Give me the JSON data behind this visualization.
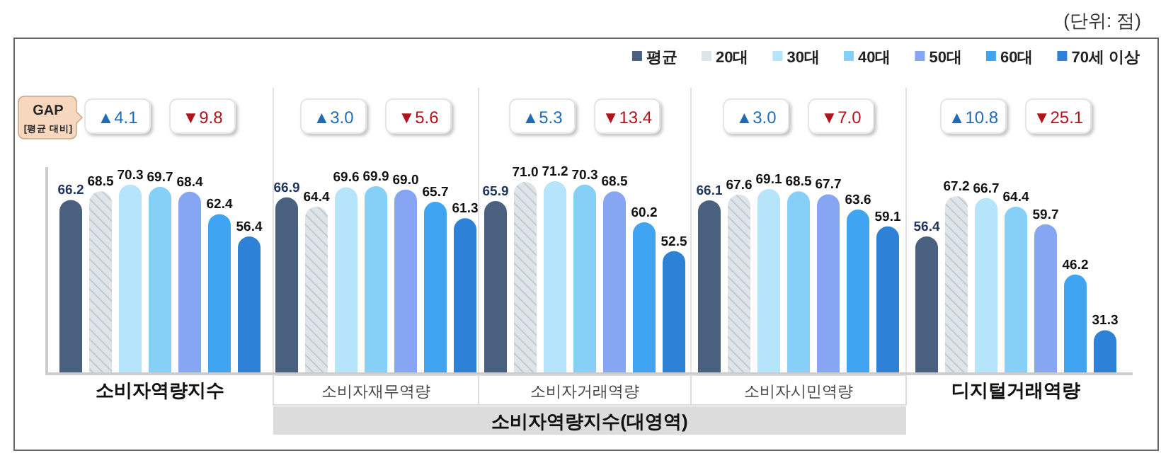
{
  "chart_data": {
    "type": "bar",
    "categories": [
      "소비자역량지수",
      "소비자재무역량",
      "소비자거래역량",
      "소비자시민역량",
      "디지털거래역량"
    ],
    "series": [
      {
        "name": "평균",
        "color": "#4a607f",
        "values": [
          66.2,
          66.9,
          65.9,
          66.1,
          56.4
        ],
        "value_labels": [
          "66.2",
          "66.9",
          "65.9",
          "66.1",
          "56.4"
        ]
      },
      {
        "name": "20대",
        "color": "#dfe4e9",
        "values": [
          68.5,
          64.4,
          71.0,
          67.6,
          67.2
        ],
        "value_labels": [
          "68.5",
          "64.4",
          "71.0",
          "67.6",
          "67.2"
        ]
      },
      {
        "name": "30대",
        "color": "#b6e4fb",
        "values": [
          70.3,
          69.6,
          71.2,
          69.1,
          66.7
        ],
        "value_labels": [
          "70.3",
          "69.6",
          "71.2",
          "69.1",
          "66.7"
        ]
      },
      {
        "name": "40대",
        "color": "#86d0f8",
        "values": [
          69.7,
          69.9,
          70.3,
          68.5,
          64.4
        ],
        "value_labels": [
          "69.7",
          "69.9",
          "70.3",
          "68.5",
          "64.4"
        ]
      },
      {
        "name": "50대",
        "color": "#86a6f4",
        "values": [
          68.4,
          69.0,
          68.5,
          67.7,
          59.7
        ],
        "value_labels": [
          "68.4",
          "69.0",
          "68.5",
          "67.7",
          "59.7"
        ]
      },
      {
        "name": "60대",
        "color": "#3fa4f1",
        "values": [
          62.4,
          65.7,
          60.2,
          63.6,
          46.2
        ],
        "value_labels": [
          "62.4",
          "65.7",
          "60.2",
          "63.6",
          "46.2"
        ]
      },
      {
        "name": "70세 이상",
        "color": "#2d82d8",
        "values": [
          56.4,
          61.3,
          52.5,
          59.1,
          31.3
        ],
        "value_labels": [
          "56.4",
          "61.3",
          "52.5",
          "59.1",
          "31.3"
        ]
      }
    ],
    "ylim": [
      20,
      75
    ],
    "legend": "top right",
    "annotations": [
      "(단위: 점)",
      "GAP",
      "[평균 대비]",
      "▲4.1",
      "▼9.8",
      "▲3.0",
      "▼5.6",
      "▲5.3",
      "▼13.4",
      "▲3.0",
      "▼7.0",
      "▲10.8",
      "▼25.1",
      "소비자역량지수(대영역)"
    ]
  }
}
